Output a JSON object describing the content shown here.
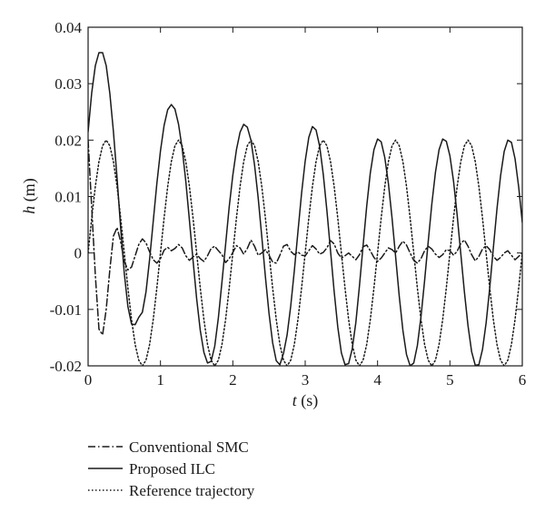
{
  "chart_data": {
    "type": "line",
    "title": "",
    "xlabel": {
      "symbol": "t",
      "unit": " (s)"
    },
    "ylabel": {
      "symbol": "h",
      "unit": " (m)"
    },
    "xlim": [
      0,
      6
    ],
    "ylim": [
      -0.02,
      0.04
    ],
    "xticks": [
      0,
      1,
      2,
      3,
      4,
      5,
      6
    ],
    "yticks": [
      -0.02,
      -0.01,
      0,
      0.01,
      0.02,
      0.03,
      0.04
    ],
    "xtick_labels": [
      "0",
      "1",
      "2",
      "3",
      "4",
      "5",
      "6"
    ],
    "ytick_labels": [
      "-0.02",
      "-0.01",
      "0",
      "0.01",
      "0.02",
      "0.03",
      "0.04"
    ],
    "grid": false,
    "legend_position": "bottom-left, outside plot",
    "series": [
      {
        "name": "Conventional SMC",
        "style": "dash-dot",
        "color": "#1a1a1a",
        "x": [
          0,
          0.05,
          0.1,
          0.15,
          0.2,
          0.25,
          0.3,
          0.35,
          0.4,
          0.45,
          0.5,
          0.55,
          0.6,
          0.65,
          0.7,
          0.75,
          0.8,
          0.85,
          0.9,
          0.95,
          1.0,
          1.05,
          1.1,
          1.15,
          1.2,
          1.25,
          1.3,
          1.35,
          1.4,
          1.45,
          1.5,
          1.55,
          1.6,
          1.65,
          1.7,
          1.75,
          1.8,
          1.85,
          1.9,
          1.95,
          2.0,
          2.05,
          2.1,
          2.15,
          2.2,
          2.25,
          2.3,
          2.35,
          2.4,
          2.45,
          2.5,
          2.55,
          2.6,
          2.65,
          2.7,
          2.75,
          2.8,
          2.85,
          2.9,
          2.95,
          3.0,
          3.05,
          3.1,
          3.15,
          3.2,
          3.25,
          3.3,
          3.35,
          3.4,
          3.45,
          3.5,
          3.55,
          3.6,
          3.65,
          3.7,
          3.75,
          3.8,
          3.85,
          3.9,
          3.95,
          4.0,
          4.05,
          4.1,
          4.15,
          4.2,
          4.25,
          4.3,
          4.35,
          4.4,
          4.45,
          4.5,
          4.55,
          4.6,
          4.65,
          4.7,
          4.75,
          4.8,
          4.85,
          4.9,
          4.95,
          5.0,
          5.05,
          5.1,
          5.15,
          5.2,
          5.25,
          5.3,
          5.35,
          5.4,
          5.45,
          5.5,
          5.55,
          5.6,
          5.65,
          5.7,
          5.75,
          5.8,
          5.85,
          5.9,
          5.95,
          6.0
        ],
        "y": [
          0.02,
          0.008,
          -0.004,
          -0.0135,
          -0.0145,
          -0.01,
          -0.003,
          0.003,
          0.0045,
          0.002,
          -0.0015,
          -0.003,
          -0.0025,
          -0.0005,
          0.0015,
          0.0025,
          0.0018,
          0.0002,
          -0.0012,
          -0.0018,
          -0.001,
          0.0005,
          0.001,
          0.0004,
          0.0008,
          0.0015,
          0.0009,
          -0.0005,
          -0.0013,
          -0.0007,
          -0.0002,
          -0.001,
          -0.0015,
          -0.0005,
          0.0008,
          0.0012,
          0.0004,
          -0.0003,
          -0.0017,
          -0.001,
          0.0001,
          0.0013,
          0.0009,
          -0.0002,
          0.0008,
          0.0023,
          0.0012,
          -0.0004,
          0.0,
          0.0006,
          -0.0004,
          -0.0016,
          -0.0018,
          -0.0004,
          0.0012,
          0.0015,
          0.0003,
          -0.0003,
          0.0002,
          -0.0004,
          -0.0005,
          0.0004,
          0.0013,
          0.0007,
          -0.0002,
          0.0001,
          0.0009,
          0.0022,
          0.0016,
          0.0,
          -0.0009,
          -0.0005,
          0.0,
          -0.0006,
          -0.0012,
          -0.0003,
          0.0011,
          0.0014,
          0.0004,
          -0.0008,
          -0.0015,
          -0.0009,
          0.0,
          0.0009,
          0.0006,
          0.0,
          0.0012,
          0.0021,
          0.0014,
          0.0,
          -0.0013,
          -0.0018,
          -0.001,
          0.0004,
          0.0012,
          0.0007,
          -0.0002,
          -0.0008,
          -0.0003,
          0.0006,
          0.0004,
          -0.0004,
          0.0003,
          0.0017,
          0.0023,
          0.0012,
          -0.0003,
          -0.0014,
          -0.0006,
          0.0007,
          0.0013,
          0.0006,
          -0.0006,
          -0.0013,
          -0.0008,
          0.0,
          0.0004,
          -0.0004,
          -0.0012,
          -0.0006,
          0.0
        ]
      },
      {
        "name": "Proposed ILC",
        "style": "solid",
        "color": "#1a1a1a",
        "x": [
          0,
          0.05,
          0.1,
          0.15,
          0.2,
          0.25,
          0.3,
          0.35,
          0.4,
          0.45,
          0.5,
          0.55,
          0.6,
          0.65,
          0.7,
          0.75,
          0.8,
          0.85,
          0.9,
          0.95,
          1.0,
          1.05,
          1.1,
          1.15,
          1.2,
          1.25,
          1.3,
          1.35,
          1.4,
          1.45,
          1.5,
          1.55,
          1.6,
          1.65,
          1.7,
          1.75,
          1.8,
          1.85,
          1.9,
          1.95,
          2.0,
          2.05,
          2.1,
          2.15,
          2.2,
          2.25,
          2.3,
          2.35,
          2.4,
          2.45,
          2.5,
          2.55,
          2.6,
          2.65,
          2.7,
          2.75,
          2.8,
          2.85,
          2.9,
          2.95,
          3.0,
          3.05,
          3.1,
          3.15,
          3.2,
          3.25,
          3.3,
          3.35,
          3.4,
          3.45,
          3.5,
          3.55,
          3.6,
          3.65,
          3.7,
          3.75,
          3.8,
          3.85,
          3.9,
          3.95,
          4.0,
          4.05,
          4.1,
          4.15,
          4.2,
          4.25,
          4.3,
          4.35,
          4.4,
          4.45,
          4.5,
          4.55,
          4.6,
          4.65,
          4.7,
          4.75,
          4.8,
          4.85,
          4.9,
          4.95,
          5.0,
          5.05,
          5.1,
          5.15,
          5.2,
          5.25,
          5.3,
          5.35,
          5.4,
          5.45,
          5.5,
          5.55,
          5.6,
          5.65,
          5.7,
          5.75,
          5.8,
          5.85,
          5.9,
          5.95,
          6.0
        ],
        "y": [
          0.0215,
          0.0284,
          0.0332,
          0.0355,
          0.0355,
          0.0332,
          0.0283,
          0.0215,
          0.0133,
          0.0044,
          -0.0036,
          -0.0095,
          -0.0126,
          -0.0127,
          -0.0114,
          -0.0105,
          -0.0069,
          -0.0011,
          0.0056,
          0.0123,
          0.0181,
          0.0226,
          0.0254,
          0.0263,
          0.0255,
          0.0228,
          0.0185,
          0.0127,
          0.0058,
          -0.0013,
          -0.0081,
          -0.0137,
          -0.0176,
          -0.0195,
          -0.0192,
          -0.0165,
          -0.0115,
          -0.0051,
          0.0015,
          0.0082,
          0.0138,
          0.0183,
          0.0214,
          0.0228,
          0.0223,
          0.02,
          0.0156,
          0.0098,
          0.0029,
          -0.0042,
          -0.0107,
          -0.0159,
          -0.0191,
          -0.0198,
          -0.0178,
          -0.0145,
          -0.0094,
          -0.0031,
          0.0038,
          0.0106,
          0.0163,
          0.0205,
          0.0224,
          0.0218,
          0.0189,
          0.0139,
          0.0075,
          0.0004,
          -0.0068,
          -0.0131,
          -0.0177,
          -0.0198,
          -0.0196,
          -0.017,
          -0.0123,
          -0.0058,
          0.0013,
          0.0083,
          0.0142,
          0.0183,
          0.0202,
          0.0197,
          0.0169,
          0.0123,
          0.0062,
          -0.0007,
          -0.0077,
          -0.0137,
          -0.018,
          -0.02,
          -0.0195,
          -0.0164,
          -0.0113,
          -0.0049,
          0.002,
          0.0087,
          0.0143,
          0.0183,
          0.0202,
          0.0198,
          0.0172,
          0.0127,
          0.0067,
          -0.0001,
          -0.0069,
          -0.0129,
          -0.0175,
          -0.0199,
          -0.0198,
          -0.0171,
          -0.0124,
          -0.0062,
          0.0009,
          0.0078,
          0.0137,
          0.018,
          0.02,
          0.0196,
          0.0167,
          0.0117,
          0.0054
        ]
      },
      {
        "name": "Reference trajectory",
        "style": "dotted",
        "color": "#1a1a1a",
        "x": [
          0,
          0.05,
          0.1,
          0.15,
          0.2,
          0.25,
          0.3,
          0.35,
          0.4,
          0.45,
          0.5,
          0.55,
          0.6,
          0.65,
          0.7,
          0.75,
          0.8,
          0.85,
          0.9,
          0.95,
          1.0,
          1.05,
          1.1,
          1.15,
          1.2,
          1.25,
          1.3,
          1.35,
          1.4,
          1.45,
          1.5,
          1.55,
          1.6,
          1.65,
          1.7,
          1.75,
          1.8,
          1.85,
          1.9,
          1.95,
          2.0,
          2.05,
          2.1,
          2.15,
          2.2,
          2.25,
          2.3,
          2.35,
          2.4,
          2.45,
          2.5,
          2.55,
          2.6,
          2.65,
          2.7,
          2.75,
          2.8,
          2.85,
          2.9,
          2.95,
          3.0,
          3.05,
          3.1,
          3.15,
          3.2,
          3.25,
          3.3,
          3.35,
          3.4,
          3.45,
          3.5,
          3.55,
          3.6,
          3.65,
          3.7,
          3.75,
          3.8,
          3.85,
          3.9,
          3.95,
          4.0,
          4.05,
          4.1,
          4.15,
          4.2,
          4.25,
          4.3,
          4.35,
          4.4,
          4.45,
          4.5,
          4.55,
          4.6,
          4.65,
          4.7,
          4.75,
          4.8,
          4.85,
          4.9,
          4.95,
          5.0,
          5.05,
          5.1,
          5.15,
          5.2,
          5.25,
          5.3,
          5.35,
          5.4,
          5.45,
          5.5,
          5.55,
          5.6,
          5.65,
          5.7,
          5.75,
          5.8,
          5.85,
          5.9,
          5.95,
          6.0
        ],
        "y": [
          0.0,
          0.0062,
          0.0118,
          0.0162,
          0.019,
          0.02,
          0.019,
          0.0162,
          0.0118,
          0.0062,
          0.0,
          -0.0062,
          -0.0118,
          -0.0162,
          -0.019,
          -0.02,
          -0.019,
          -0.0162,
          -0.0118,
          -0.0062,
          0.0,
          0.0062,
          0.0118,
          0.0162,
          0.019,
          0.02,
          0.019,
          0.0162,
          0.0118,
          0.0062,
          0.0,
          -0.0062,
          -0.0118,
          -0.0162,
          -0.019,
          -0.02,
          -0.019,
          -0.0162,
          -0.0118,
          -0.0062,
          0.0,
          0.0062,
          0.0118,
          0.0162,
          0.019,
          0.02,
          0.019,
          0.0162,
          0.0118,
          0.0062,
          0.0,
          -0.0062,
          -0.0118,
          -0.0162,
          -0.019,
          -0.02,
          -0.019,
          -0.0162,
          -0.0118,
          -0.0062,
          0.0,
          0.0062,
          0.0118,
          0.0162,
          0.019,
          0.02,
          0.019,
          0.0162,
          0.0118,
          0.0062,
          0.0,
          -0.0062,
          -0.0118,
          -0.0162,
          -0.019,
          -0.02,
          -0.019,
          -0.0162,
          -0.0118,
          -0.0062,
          0.0,
          0.0062,
          0.0118,
          0.0162,
          0.019,
          0.02,
          0.019,
          0.0162,
          0.0118,
          0.0062,
          0.0,
          -0.0062,
          -0.0118,
          -0.0162,
          -0.019,
          -0.02,
          -0.019,
          -0.0162,
          -0.0118,
          -0.0062,
          0.0,
          0.0062,
          0.0118,
          0.0162,
          0.019,
          0.02,
          0.019,
          0.0162,
          0.0118,
          0.0062,
          0.0,
          -0.0062,
          -0.0118,
          -0.0162,
          -0.019,
          -0.02,
          -0.019,
          -0.0162,
          -0.0118,
          -0.0062,
          0.0
        ]
      }
    ]
  }
}
